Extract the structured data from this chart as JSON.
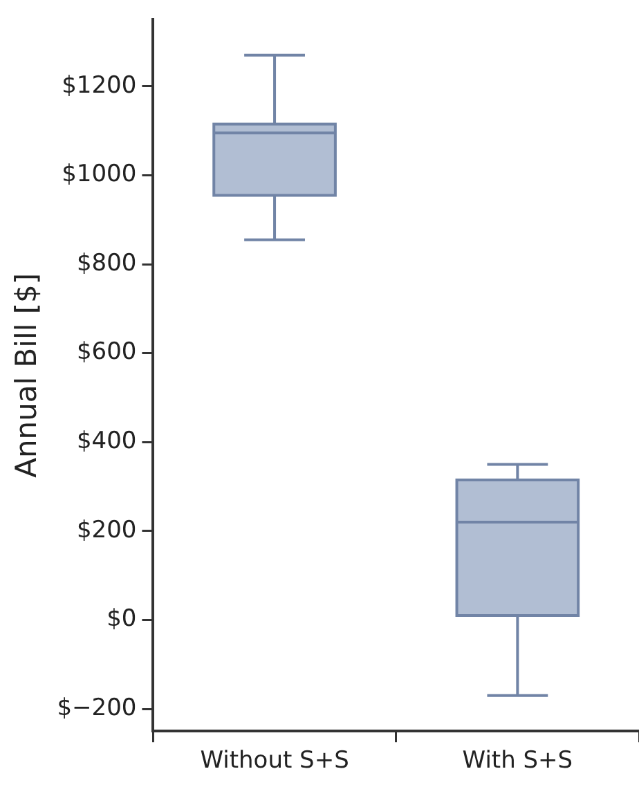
{
  "chart_data": {
    "type": "box",
    "ylabel": "Annual Bill [$]",
    "categories": [
      "Without S+S",
      "With S+S"
    ],
    "color": "#b1bed3",
    "boxes": [
      {
        "low": 855,
        "q1": 955,
        "median": 1095,
        "q3": 1115,
        "high": 1270
      },
      {
        "low": -170,
        "q1": 10,
        "median": 220,
        "q3": 315,
        "high": 350
      }
    ],
    "ylim": [
      -250,
      1350
    ],
    "yticks": [
      {
        "value": -200,
        "label": "$−200"
      },
      {
        "value": 0,
        "label": "$0"
      },
      {
        "value": 200,
        "label": "$200"
      },
      {
        "value": 400,
        "label": "$400"
      },
      {
        "value": 600,
        "label": "$600"
      },
      {
        "value": 800,
        "label": "$800"
      },
      {
        "value": 1000,
        "label": "$1000"
      },
      {
        "value": 1200,
        "label": "$1200"
      }
    ],
    "grid": false
  }
}
